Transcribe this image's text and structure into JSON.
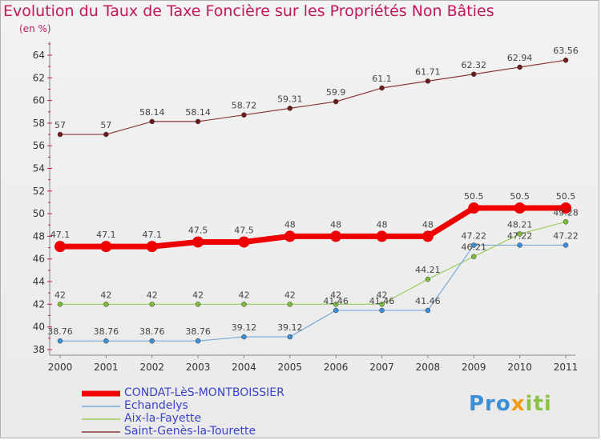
{
  "title": "Evolution du Taux de Taxe Foncière sur les Propriétés Non Bâties",
  "unit": "(en %)",
  "logo": {
    "part1": "Pro",
    "part2": "x",
    "part3": "iti"
  },
  "chart_data": {
    "type": "line",
    "x": [
      "2000",
      "2001",
      "2002",
      "2003",
      "2004",
      "2005",
      "2006",
      "2007",
      "2008",
      "2009",
      "2010",
      "2011"
    ],
    "y_ticks": [
      38,
      40,
      42,
      44,
      46,
      48,
      50,
      52,
      54,
      56,
      58,
      60,
      62,
      64
    ],
    "ylim": [
      37.5,
      65.2
    ],
    "grid": false,
    "legend_position": "bottom-left",
    "series": [
      {
        "name": "Saint-Genès-la-Tourette",
        "color": "#8b3a3a",
        "marker": "#6d1a1a",
        "width": 1.2,
        "r": 3,
        "values": [
          57,
          57,
          58.14,
          58.14,
          58.72,
          59.31,
          59.9,
          61.1,
          61.71,
          62.32,
          62.94,
          63.56
        ],
        "labels": [
          "57",
          "57",
          "58.14",
          "58.14",
          "58.72",
          "59.31",
          "59.9",
          "61.1",
          "61.71",
          "62.32",
          "62.94",
          "63.56"
        ]
      },
      {
        "name": "CONDAT-LèS-MONTBOISSIER",
        "color": "#ee0000",
        "marker": "#ee0000",
        "width": 7,
        "r": 7,
        "values": [
          47.1,
          47.1,
          47.1,
          47.5,
          47.5,
          48,
          48,
          48,
          48,
          50.5,
          50.5,
          50.5
        ],
        "labels": [
          "47.1",
          "47.1",
          "47.1",
          "47.5",
          "47.5",
          "48",
          "48",
          "48",
          "48",
          "50.5",
          "50.5",
          "50.5"
        ]
      },
      {
        "name": "Aix-la-Fayette",
        "color": "#9acd5a",
        "marker": "#7cbc3a",
        "width": 1.2,
        "r": 3,
        "values": [
          42,
          42,
          42,
          42,
          42,
          42,
          42,
          42,
          44.21,
          46.21,
          48.21,
          49.28
        ],
        "labels": [
          "42",
          "42",
          "42",
          "42",
          "42",
          "42",
          "42",
          "42",
          "44.21",
          "46.21",
          "48.21",
          "49.28"
        ]
      },
      {
        "name": "Echandelys",
        "color": "#7aa8d6",
        "marker": "#3b8fd6",
        "width": 1.2,
        "r": 3,
        "values": [
          38.76,
          38.76,
          38.76,
          38.76,
          39.12,
          39.12,
          41.46,
          41.46,
          41.46,
          47.22,
          47.22,
          47.22
        ],
        "labels": [
          "38.76",
          "38.76",
          "38.76",
          "38.76",
          "39.12",
          "39.12",
          "41.46",
          "41.46",
          "41.46",
          "47.22",
          "47.22",
          "47.22"
        ]
      }
    ]
  },
  "legend": [
    {
      "label": "CONDAT-LèS-MONTBOISSIER",
      "color": "#ee0000",
      "thick": true
    },
    {
      "label": "Echandelys",
      "color": "#7aa8d6",
      "thick": false
    },
    {
      "label": "Aix-la-Fayette",
      "color": "#9acd5a",
      "thick": false
    },
    {
      "label": "Saint-Genès-la-Tourette",
      "color": "#8b3a3a",
      "thick": false
    }
  ]
}
